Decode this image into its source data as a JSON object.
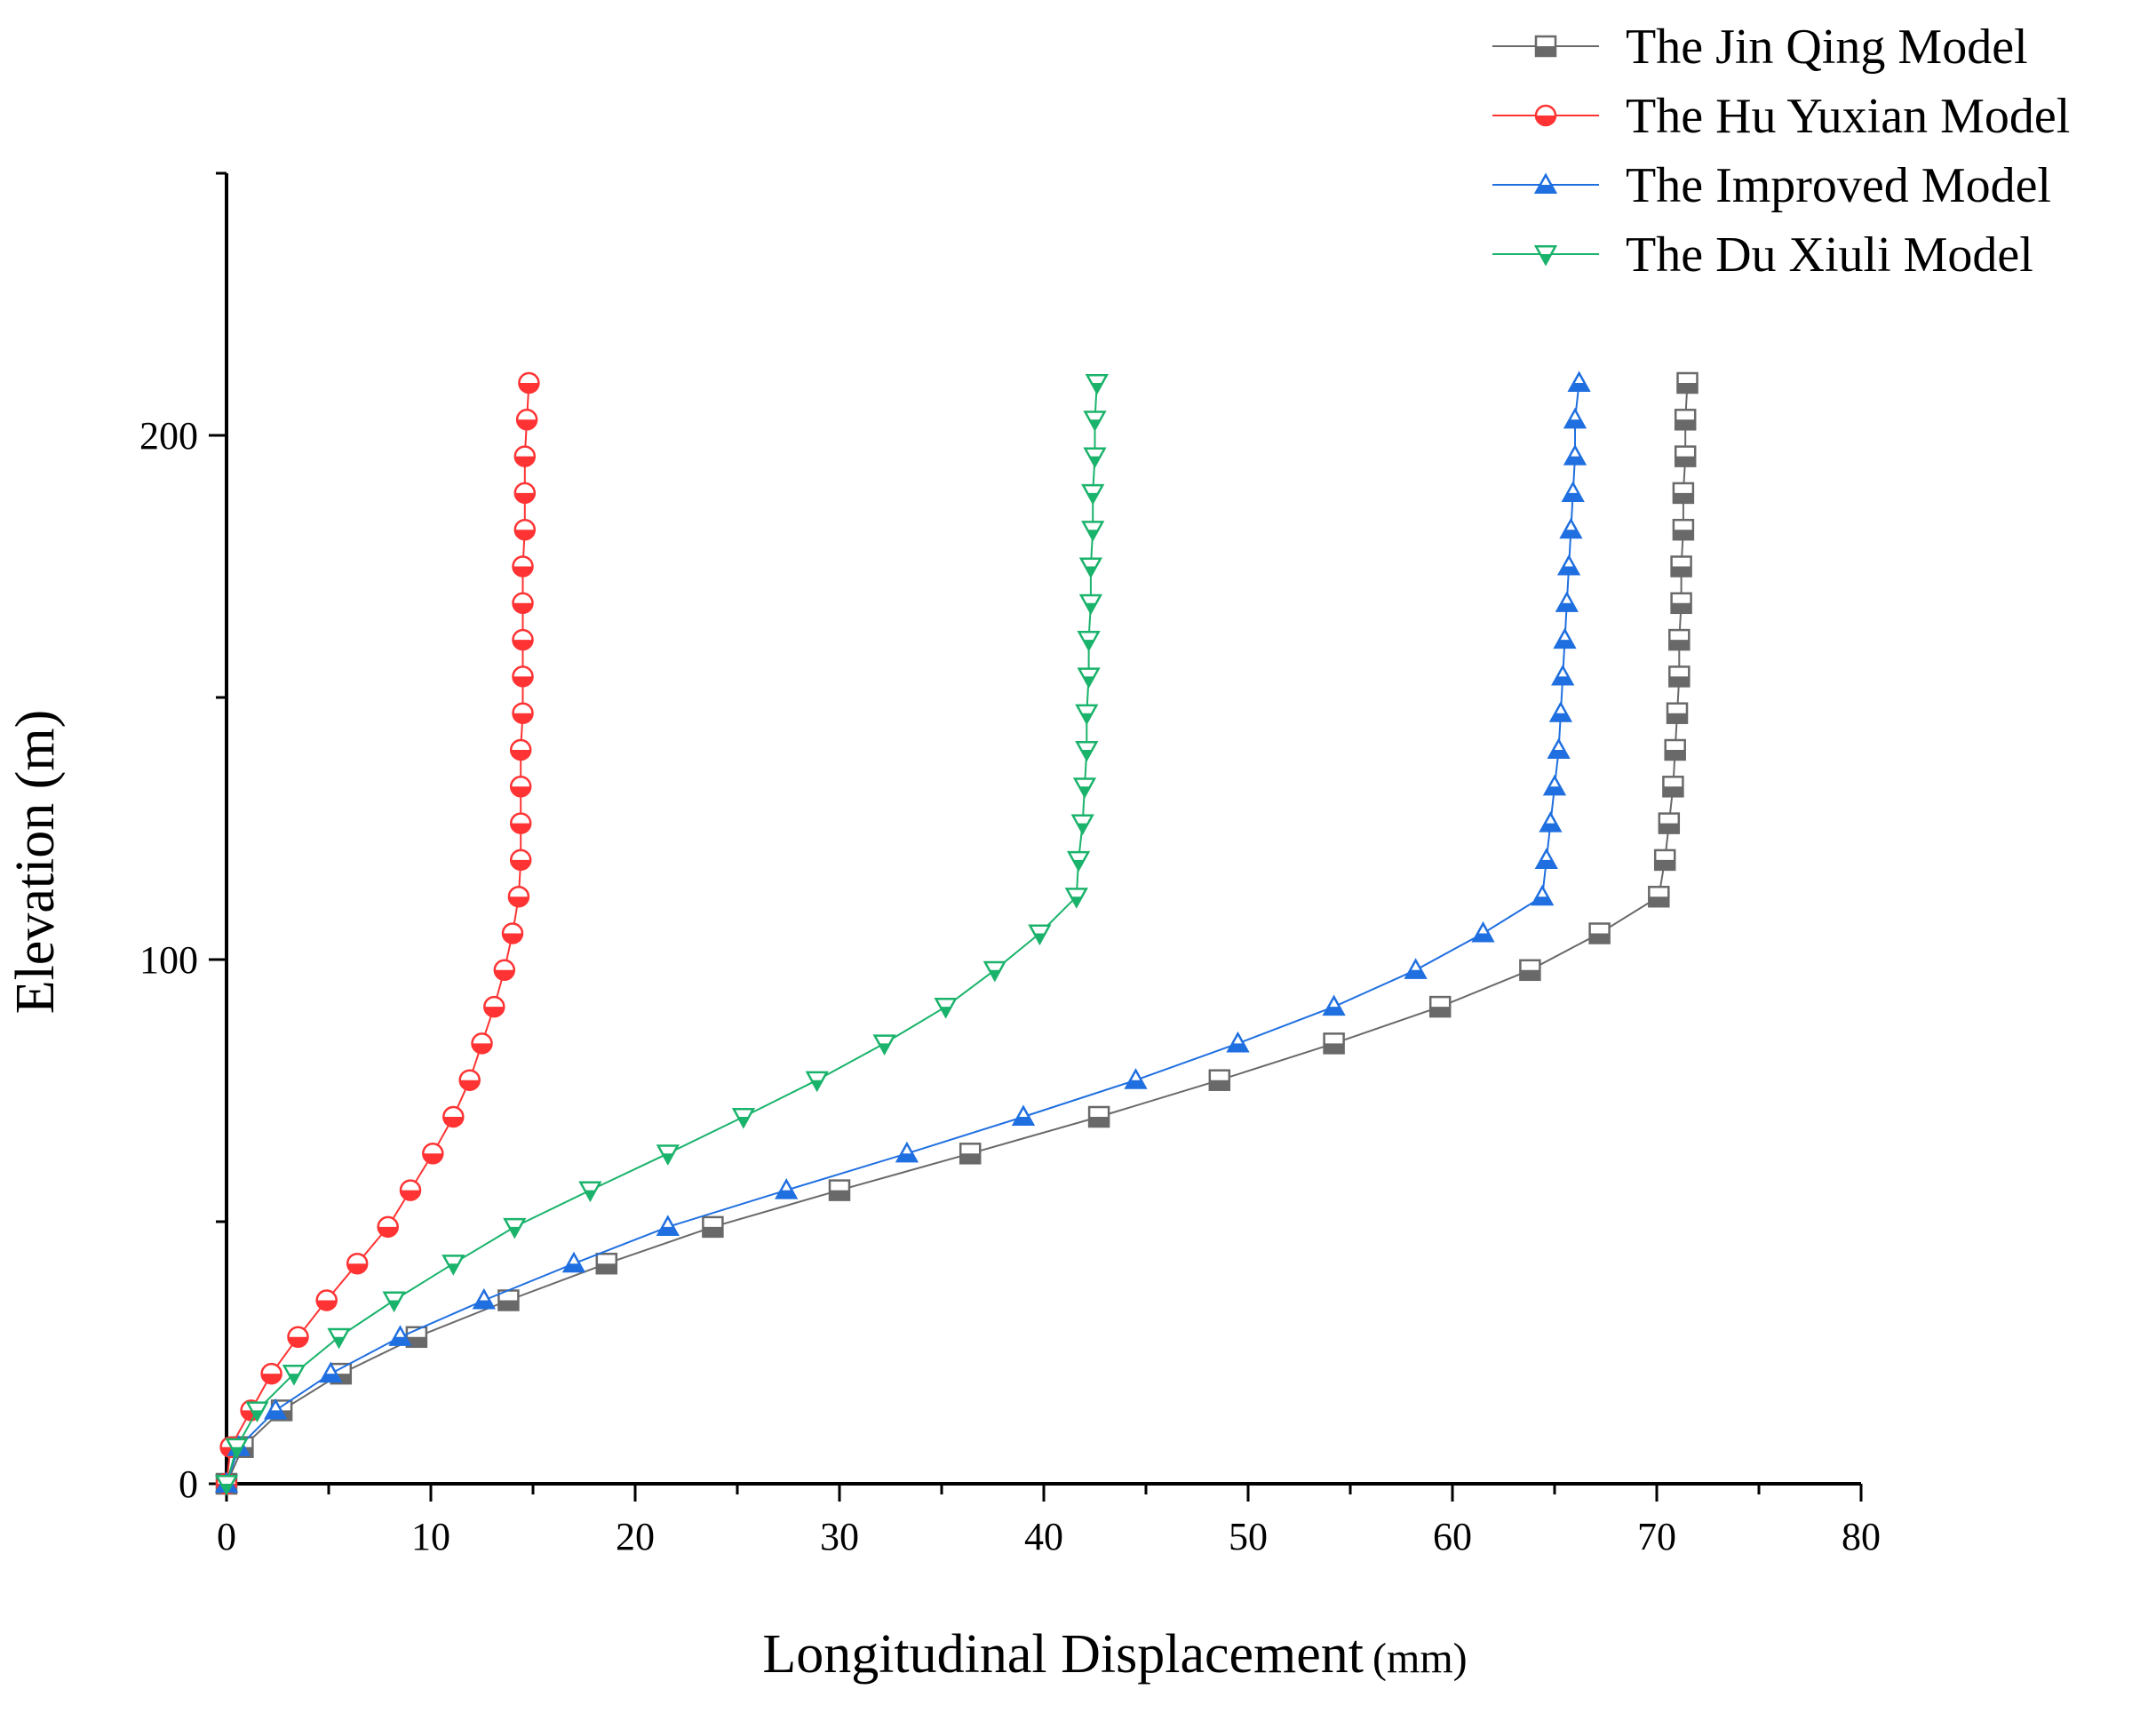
{
  "chart_data": {
    "type": "line",
    "title": "",
    "xlabel": "Longitudinal Displacement",
    "xlabel_unit": "(mm)",
    "ylabel": "Elevation (m)",
    "xlim": [
      0,
      80
    ],
    "ylim": [
      0,
      250
    ],
    "x_ticks": [
      "0",
      "10",
      "20",
      "30",
      "40",
      "50",
      "60",
      "70",
      "80"
    ],
    "y_ticks": [
      "0",
      "100",
      "200"
    ],
    "grid": false,
    "legend_position": "top-right",
    "elevation": [
      0,
      7,
      14,
      21,
      28,
      35,
      42,
      49,
      56,
      63,
      70,
      77,
      84,
      91,
      98,
      105,
      112,
      119,
      126,
      133,
      140,
      147,
      154,
      161,
      168,
      175,
      182,
      189,
      196,
      203,
      210
    ],
    "series": [
      {
        "name": "The Jin Qing Model",
        "color": "#696969",
        "marker": "square",
        "displacement": [
          0,
          0.8,
          2.7,
          5.6,
          9.3,
          13.8,
          18.6,
          23.8,
          30.0,
          36.4,
          42.7,
          48.6,
          54.2,
          59.4,
          63.8,
          67.2,
          70.1,
          70.4,
          70.6,
          70.8,
          70.9,
          71.0,
          71.1,
          71.1,
          71.2,
          71.2,
          71.3,
          71.3,
          71.4,
          71.4,
          71.5
        ]
      },
      {
        "name": "The Hu Yuxian Model",
        "color": "#ff3333",
        "marker": "circle",
        "displacement": [
          0,
          0.2,
          1.2,
          2.2,
          3.5,
          4.9,
          6.4,
          7.9,
          9.0,
          10.1,
          11.1,
          11.9,
          12.5,
          13.1,
          13.6,
          14.0,
          14.3,
          14.4,
          14.4,
          14.4,
          14.4,
          14.5,
          14.5,
          14.5,
          14.5,
          14.5,
          14.6,
          14.6,
          14.6,
          14.7,
          14.8
        ]
      },
      {
        "name": "The Improved Model",
        "color": "#1f6fe0",
        "marker": "triangle-up",
        "displacement": [
          0,
          0.6,
          2.4,
          5.1,
          8.5,
          12.6,
          17.0,
          21.6,
          27.4,
          33.3,
          39.0,
          44.5,
          49.5,
          54.2,
          58.2,
          61.5,
          64.4,
          64.6,
          64.8,
          65.0,
          65.2,
          65.3,
          65.4,
          65.5,
          65.6,
          65.7,
          65.8,
          65.9,
          66.0,
          66.0,
          66.2
        ]
      },
      {
        "name": "The Du Xiuli Model",
        "color": "#1ab36b",
        "marker": "triangle-down",
        "displacement": [
          0,
          0.5,
          1.5,
          3.3,
          5.5,
          8.2,
          11.1,
          14.1,
          17.8,
          21.6,
          25.3,
          28.9,
          32.2,
          35.2,
          37.6,
          39.8,
          41.6,
          41.7,
          41.9,
          42.0,
          42.1,
          42.1,
          42.2,
          42.2,
          42.3,
          42.3,
          42.4,
          42.4,
          42.5,
          42.5,
          42.6
        ]
      }
    ]
  }
}
